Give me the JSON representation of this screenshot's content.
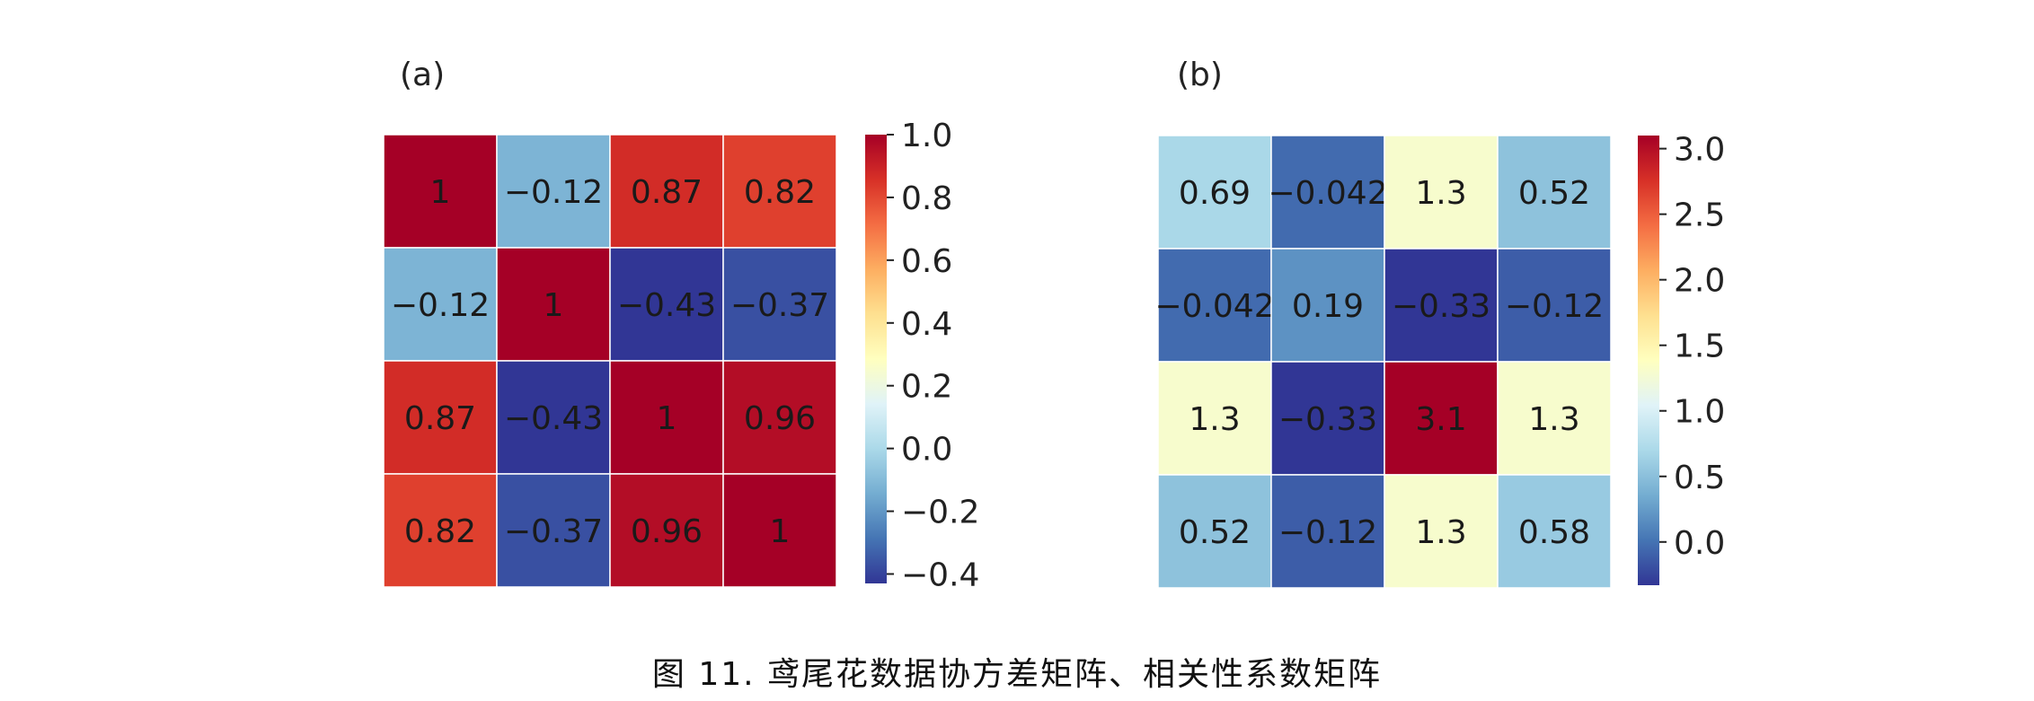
{
  "chart_data": [
    {
      "type": "heatmap",
      "panel_label": "(a)",
      "rows": 4,
      "cols": 4,
      "values": [
        [
          1,
          -0.12,
          0.87,
          0.82
        ],
        [
          -0.12,
          1,
          -0.43,
          -0.37
        ],
        [
          0.87,
          -0.43,
          1,
          0.96
        ],
        [
          0.82,
          -0.37,
          0.96,
          1
        ]
      ],
      "annotations": [
        [
          "1",
          "−0.12",
          "0.87",
          "0.82"
        ],
        [
          "−0.12",
          "1",
          "−0.43",
          "−0.37"
        ],
        [
          "0.87",
          "−0.43",
          "1",
          "0.96"
        ],
        [
          "0.82",
          "−0.37",
          "0.96",
          "1"
        ]
      ],
      "colormap": "RdYlBu_r",
      "vmin": -0.43,
      "vmax": 1.0,
      "colorbar_ticks": [
        1.0,
        0.8,
        0.6,
        0.4,
        0.2,
        0.0,
        -0.2,
        -0.4
      ],
      "colorbar_tick_labels": [
        "1.0",
        "0.8",
        "0.6",
        "0.4",
        "0.2",
        "0.0",
        "−0.2",
        "−0.4"
      ]
    },
    {
      "type": "heatmap",
      "panel_label": "(b)",
      "rows": 4,
      "cols": 4,
      "values": [
        [
          0.69,
          -0.042,
          1.3,
          0.52
        ],
        [
          -0.042,
          0.19,
          -0.33,
          -0.12
        ],
        [
          1.3,
          -0.33,
          3.1,
          1.3
        ],
        [
          0.52,
          -0.12,
          1.3,
          0.58
        ]
      ],
      "annotations": [
        [
          "0.69",
          "−0.042",
          "1.3",
          "0.52"
        ],
        [
          "−0.042",
          "0.19",
          "−0.33",
          "−0.12"
        ],
        [
          "1.3",
          "−0.33",
          "3.1",
          "1.3"
        ],
        [
          "0.52",
          "−0.12",
          "1.3",
          "0.58"
        ]
      ],
      "colormap": "RdYlBu_r",
      "vmin": -0.33,
      "vmax": 3.1,
      "colorbar_ticks": [
        3.0,
        2.5,
        2.0,
        1.5,
        1.0,
        0.5,
        0.0
      ],
      "colorbar_tick_labels": [
        "3.0",
        "2.5",
        "2.0",
        "1.5",
        "1.0",
        "0.5",
        "0.0"
      ]
    }
  ],
  "caption": "图 11. 鸢尾花数据协方差矩阵、相关性系数矩阵",
  "colors": {
    "colormap_stops": [
      "#313695",
      "#4575b4",
      "#74add1",
      "#abd9e9",
      "#e0f3f8",
      "#ffffbf",
      "#fee090",
      "#fdae61",
      "#f46d43",
      "#d73027",
      "#a50026"
    ],
    "annotation_text": "#1a1a1a",
    "cell_border": "#ffffff",
    "axis_text": "#222222"
  }
}
